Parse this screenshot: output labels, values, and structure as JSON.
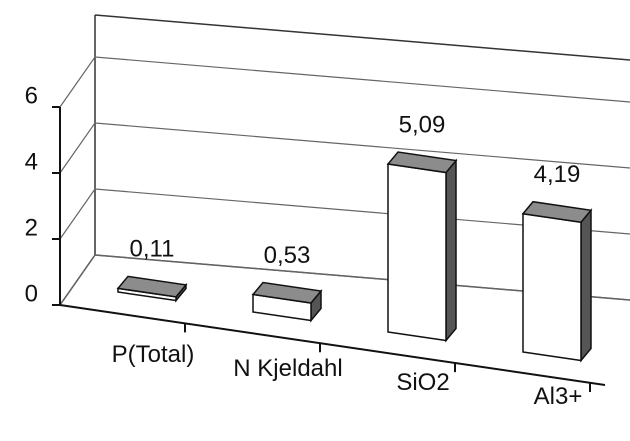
{
  "chart_data": {
    "type": "bar3d",
    "categories": [
      "P(Total)",
      "N Kjeldahl",
      "SiO2",
      "Al3+"
    ],
    "values": [
      0.11,
      0.53,
      5.09,
      4.19
    ],
    "value_labels": [
      "0,11",
      "0,53",
      "5,09",
      "4,19"
    ],
    "color": "#ffffff",
    "top_color": "#8c8c8c",
    "ylim": [
      0,
      6
    ],
    "yticks": [
      0,
      2,
      4,
      6
    ],
    "grid": true
  }
}
